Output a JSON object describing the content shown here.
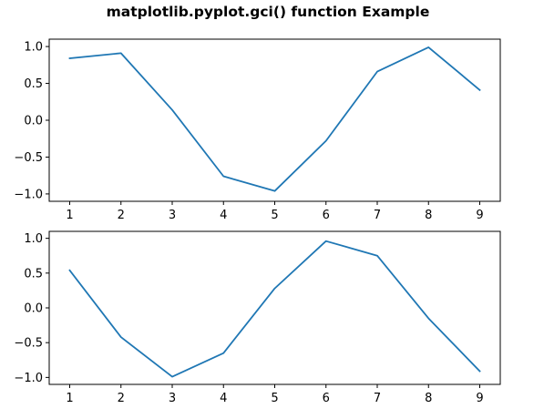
{
  "figure": {
    "title": "matplotlib.pyplot.gci() function Example"
  },
  "chart_data": [
    {
      "type": "line",
      "title": "",
      "xlabel": "",
      "ylabel": "",
      "x": [
        1,
        2,
        3,
        4,
        5,
        6,
        7,
        8,
        9
      ],
      "series": [
        {
          "values": [
            0.84,
            0.91,
            0.14,
            -0.76,
            -0.96,
            -0.28,
            0.66,
            0.99,
            0.41
          ],
          "color": "#1f77b4"
        }
      ],
      "xticks": [
        1,
        2,
        3,
        4,
        5,
        6,
        7,
        8,
        9
      ],
      "xtick_labels": [
        "1",
        "2",
        "3",
        "4",
        "5",
        "6",
        "7",
        "8",
        "9"
      ],
      "yticks": [
        1.0,
        0.5,
        0.0,
        -0.5,
        -1.0
      ],
      "ytick_labels": [
        "1.0",
        "0.5",
        "0.0",
        "−0.5",
        "−1.0"
      ],
      "xlim": [
        0.6,
        9.4
      ],
      "ylim": [
        -1.1,
        1.1
      ],
      "grid": false
    },
    {
      "type": "line",
      "title": "",
      "xlabel": "",
      "ylabel": "",
      "x": [
        1,
        2,
        3,
        4,
        5,
        6,
        7,
        8,
        9
      ],
      "series": [
        {
          "values": [
            0.54,
            -0.42,
            -0.99,
            -0.65,
            0.28,
            0.96,
            0.75,
            -0.15,
            -0.91
          ],
          "color": "#1f77b4"
        }
      ],
      "xticks": [
        1,
        2,
        3,
        4,
        5,
        6,
        7,
        8,
        9
      ],
      "xtick_labels": [
        "1",
        "2",
        "3",
        "4",
        "5",
        "6",
        "7",
        "8",
        "9"
      ],
      "yticks": [
        1.0,
        0.5,
        0.0,
        -0.5,
        -1.0
      ],
      "ytick_labels": [
        "1.0",
        "0.5",
        "0.0",
        "−0.5",
        "−1.0"
      ],
      "xlim": [
        0.6,
        9.4
      ],
      "ylim": [
        -1.1,
        1.1
      ],
      "grid": false
    }
  ]
}
